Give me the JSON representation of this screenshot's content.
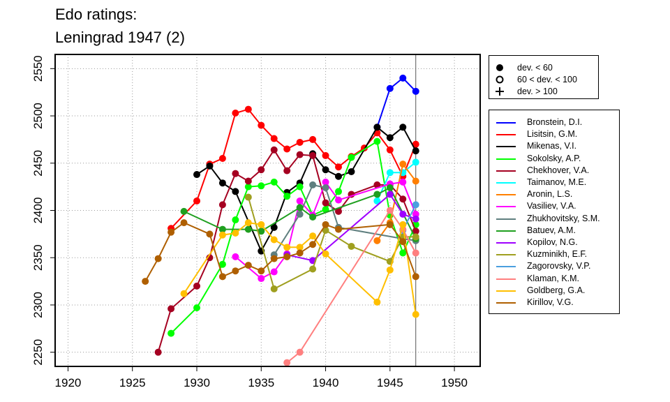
{
  "title": [
    "Edo ratings:",
    "Leningrad 1947 (2)"
  ],
  "deviation_legend": [
    {
      "label": "dev. < 60",
      "marker": "filled-circle"
    },
    {
      "label": "60 < dev. < 100",
      "marker": "open-circle"
    },
    {
      "label": "dev. > 100",
      "marker": "plus"
    }
  ],
  "chart_data": {
    "type": "line",
    "title": "Edo ratings: Leningrad 1947 (2)",
    "xlabel": "",
    "ylabel": "",
    "xlim": [
      1919,
      1952
    ],
    "ylim": [
      2235,
      2565
    ],
    "x_ticks": [
      1920,
      1925,
      1930,
      1935,
      1940,
      1945,
      1950
    ],
    "y_ticks": [
      2250,
      2300,
      2350,
      2400,
      2450,
      2500,
      2550
    ],
    "grid": "dotted",
    "vertical_marker_year": 1947,
    "legend_position": "right",
    "series": [
      {
        "name": "Bronstein, D.I.",
        "color": "#0000ff",
        "points": [
          [
            1944,
            2488
          ],
          [
            1945,
            2529
          ],
          [
            1946,
            2540
          ],
          [
            1947,
            2526
          ]
        ]
      },
      {
        "name": "Lisitsin, G.M.",
        "color": "#ff0000",
        "points": [
          [
            1928,
            2381
          ],
          [
            1930,
            2410
          ],
          [
            1931,
            2449
          ],
          [
            1932,
            2455
          ],
          [
            1933,
            2503
          ],
          [
            1934,
            2507
          ],
          [
            1935,
            2490
          ],
          [
            1936,
            2476
          ],
          [
            1937,
            2465
          ],
          [
            1938,
            2472
          ],
          [
            1939,
            2475
          ],
          [
            1940,
            2458
          ],
          [
            1941,
            2446
          ],
          [
            1942,
            2457
          ],
          [
            1943,
            2466
          ],
          [
            1944,
            2482
          ],
          [
            1945,
            2464
          ],
          [
            1946,
            2436
          ],
          [
            1947,
            2470
          ]
        ]
      },
      {
        "name": "Mikenas, V.I.",
        "color": "#000000",
        "points": [
          [
            1930,
            2438
          ],
          [
            1931,
            2447
          ],
          [
            1932,
            2429
          ],
          [
            1933,
            2420
          ],
          [
            1935,
            2357
          ],
          [
            1936,
            2382
          ],
          [
            1937,
            2419
          ],
          [
            1938,
            2429
          ],
          [
            1939,
            2460
          ],
          [
            1940,
            2443
          ],
          [
            1941,
            2436
          ],
          [
            1942,
            2441
          ],
          [
            1944,
            2488
          ],
          [
            1945,
            2477
          ],
          [
            1946,
            2488
          ],
          [
            1947,
            2463
          ]
        ]
      },
      {
        "name": "Sokolsky, A.P.",
        "color": "#00ff00",
        "points": [
          [
            1928,
            2270
          ],
          [
            1930,
            2297
          ],
          [
            1932,
            2343
          ],
          [
            1933,
            2390
          ],
          [
            1934,
            2425
          ],
          [
            1935,
            2426
          ],
          [
            1936,
            2430
          ],
          [
            1937,
            2415
          ],
          [
            1938,
            2425
          ],
          [
            1939,
            2395
          ],
          [
            1940,
            2401
          ],
          [
            1941,
            2420
          ],
          [
            1942,
            2456
          ],
          [
            1944,
            2473
          ],
          [
            1945,
            2395
          ],
          [
            1946,
            2355
          ],
          [
            1947,
            2385
          ]
        ]
      },
      {
        "name": "Chekhover, V.A.",
        "color": "#a50021",
        "points": [
          [
            1927,
            2250
          ],
          [
            1928,
            2296
          ],
          [
            1930,
            2320
          ],
          [
            1931,
            2350
          ],
          [
            1932,
            2406
          ],
          [
            1933,
            2439
          ],
          [
            1934,
            2431
          ],
          [
            1935,
            2443
          ],
          [
            1936,
            2464
          ],
          [
            1937,
            2442
          ],
          [
            1938,
            2459
          ],
          [
            1939,
            2458
          ],
          [
            1940,
            2408
          ],
          [
            1941,
            2399
          ],
          [
            1942,
            2417
          ],
          [
            1944,
            2427
          ],
          [
            1945,
            2427
          ],
          [
            1946,
            2412
          ],
          [
            1947,
            2378
          ]
        ]
      },
      {
        "name": "Taimanov, M.E.",
        "color": "#00ffff",
        "points": [
          [
            1944,
            2410
          ],
          [
            1945,
            2440
          ],
          [
            1946,
            2440
          ],
          [
            1947,
            2451
          ]
        ]
      },
      {
        "name": "Aronin, L.S.",
        "color": "#ff7f00",
        "points": [
          [
            1944,
            2368
          ],
          [
            1945,
            2387
          ],
          [
            1946,
            2449
          ],
          [
            1947,
            2431
          ]
        ]
      },
      {
        "name": "Vasiliev, V.A.",
        "color": "#ff00ff",
        "points": [
          [
            1933,
            2351
          ],
          [
            1935,
            2328
          ],
          [
            1936,
            2335
          ],
          [
            1937,
            2354
          ],
          [
            1938,
            2410
          ],
          [
            1939,
            2395
          ],
          [
            1940,
            2430
          ],
          [
            1941,
            2411
          ],
          [
            1945,
            2428
          ],
          [
            1946,
            2430
          ],
          [
            1947,
            2396
          ]
        ]
      },
      {
        "name": "Zhukhovitsky, S.M.",
        "color": "#5f7f7f",
        "points": [
          [
            1936,
            2353
          ],
          [
            1938,
            2396
          ],
          [
            1939,
            2427
          ],
          [
            1940,
            2424
          ],
          [
            1941,
            2382
          ],
          [
            1946,
            2370
          ],
          [
            1947,
            2368
          ]
        ]
      },
      {
        "name": "Batuev, A.M.",
        "color": "#1f9f1f",
        "points": [
          [
            1929,
            2399
          ],
          [
            1932,
            2380
          ],
          [
            1934,
            2380
          ],
          [
            1935,
            2378
          ],
          [
            1938,
            2403
          ],
          [
            1939,
            2393
          ],
          [
            1944,
            2417
          ],
          [
            1945,
            2424
          ],
          [
            1947,
            2370
          ]
        ]
      },
      {
        "name": "Kopilov, N.G.",
        "color": "#9f00ff",
        "points": [
          [
            1937,
            2353
          ],
          [
            1939,
            2347
          ],
          [
            1945,
            2417
          ],
          [
            1946,
            2396
          ],
          [
            1947,
            2391
          ]
        ]
      },
      {
        "name": "Kuzminikh, E.F.",
        "color": "#9f9f1f",
        "points": [
          [
            1934,
            2414
          ],
          [
            1936,
            2317
          ],
          [
            1939,
            2338
          ],
          [
            1940,
            2379
          ],
          [
            1942,
            2362
          ],
          [
            1945,
            2346
          ],
          [
            1946,
            2372
          ],
          [
            1947,
            2372
          ]
        ]
      },
      {
        "name": "Zagorovsky, V.P.",
        "color": "#4a9fdf",
        "points": [
          [
            1946,
            2379
          ],
          [
            1947,
            2406
          ]
        ]
      },
      {
        "name": "Klaman, K.M.",
        "color": "#ff7f7f",
        "points": [
          [
            1937,
            2239
          ],
          [
            1938,
            2250
          ],
          [
            1945,
            2400
          ],
          [
            1946,
            2380
          ],
          [
            1947,
            2355
          ]
        ]
      },
      {
        "name": "Goldberg, G.A.",
        "color": "#ffbf00",
        "points": [
          [
            1929,
            2312
          ],
          [
            1932,
            2374
          ],
          [
            1933,
            2376
          ],
          [
            1934,
            2387
          ],
          [
            1935,
            2385
          ],
          [
            1936,
            2369
          ],
          [
            1937,
            2361
          ],
          [
            1938,
            2361
          ],
          [
            1939,
            2373
          ],
          [
            1940,
            2354
          ],
          [
            1944,
            2303
          ],
          [
            1945,
            2337
          ],
          [
            1946,
            2385
          ],
          [
            1947,
            2290
          ]
        ]
      },
      {
        "name": "Kirillov, V.G.",
        "color": "#af5f00",
        "points": [
          [
            1926,
            2325
          ],
          [
            1927,
            2349
          ],
          [
            1928,
            2377
          ],
          [
            1929,
            2387
          ],
          [
            1931,
            2375
          ],
          [
            1932,
            2330
          ],
          [
            1933,
            2336
          ],
          [
            1934,
            2342
          ],
          [
            1935,
            2336
          ],
          [
            1936,
            2349
          ],
          [
            1937,
            2351
          ],
          [
            1938,
            2355
          ],
          [
            1939,
            2364
          ],
          [
            1940,
            2385
          ],
          [
            1941,
            2380
          ],
          [
            1945,
            2385
          ],
          [
            1946,
            2367
          ],
          [
            1947,
            2330
          ]
        ]
      }
    ]
  }
}
